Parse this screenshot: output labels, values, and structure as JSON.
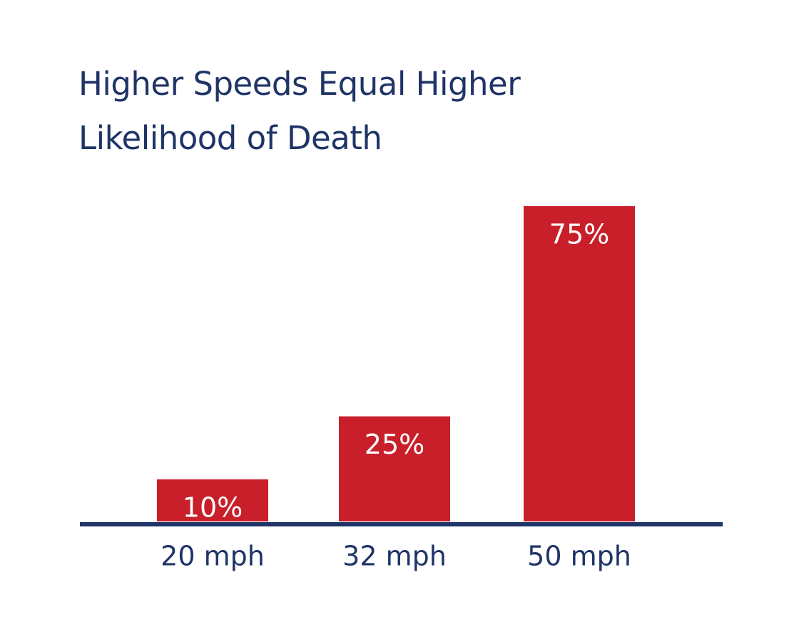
{
  "title_lines": [
    "Higher Speeds Equal Higher",
    "Likelihood of Death"
  ],
  "colors": {
    "title": "#1f3467",
    "bar": "#c81f2a",
    "axis": "#1f3467",
    "value_label": "#ffffff",
    "tick_label": "#1f3467"
  },
  "chart_data": {
    "type": "bar",
    "title": "Higher Speeds Equal Higher Likelihood of Death",
    "categories": [
      "20 mph",
      "32 mph",
      "50 mph"
    ],
    "values": [
      10,
      25,
      75
    ],
    "data_labels": [
      "10%",
      "25%",
      "75%"
    ],
    "xlabel": "",
    "ylabel": "",
    "ylim": [
      0,
      75
    ],
    "grid": false,
    "legend": "none",
    "y_axis_visible": false
  }
}
